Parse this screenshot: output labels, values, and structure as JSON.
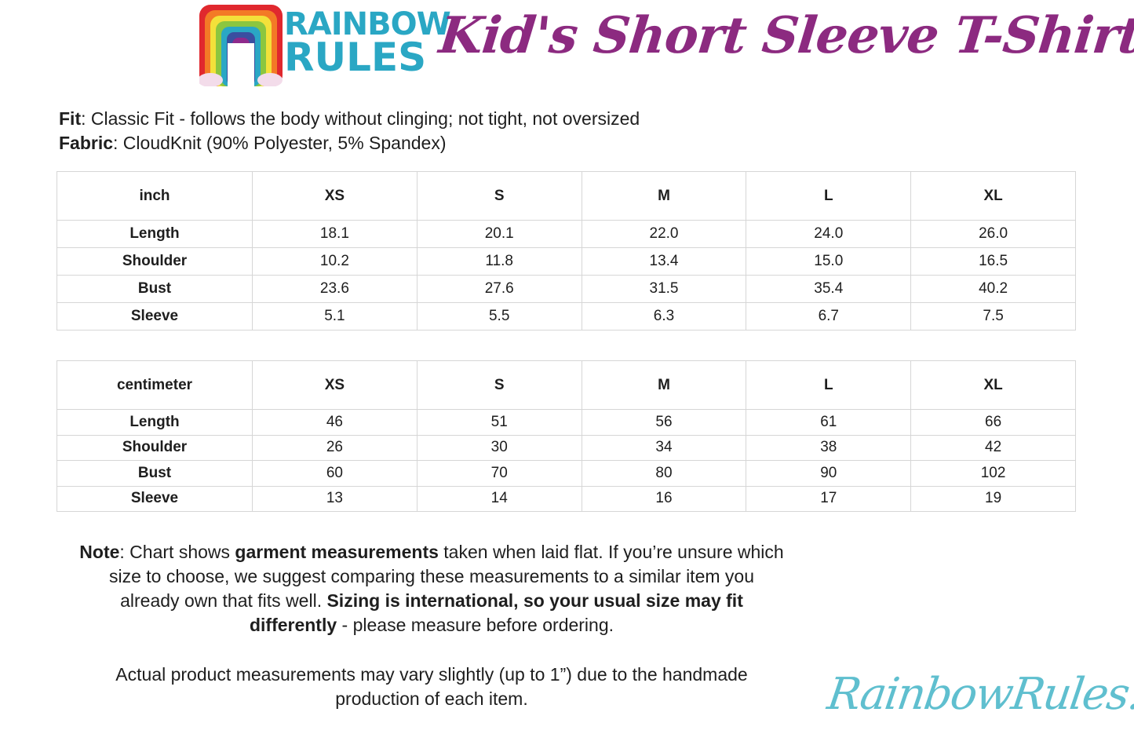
{
  "logo": {
    "line1": "RAINBOW",
    "line2": "RULES",
    "rainbow_colors": [
      "#e0282e",
      "#f37a26",
      "#f3e13a",
      "#8cc63f",
      "#2aa7c4",
      "#3a4fa0",
      "#8e2a8c"
    ]
  },
  "title": "Kid's Short Sleeve T-Shirt",
  "specs": {
    "fit_label": "Fit",
    "fit_value": ": Classic Fit - follows the body without clinging; not tight, not oversized",
    "fabric_label": "Fabric",
    "fabric_value": ": CloudKnit (90% Polyester, 5% Spandex)"
  },
  "inch_table": {
    "headers": [
      "inch",
      "XS",
      "S",
      "M",
      "L",
      "XL"
    ],
    "rows": [
      [
        "Length",
        "18.1",
        "20.1",
        "22.0",
        "24.0",
        "26.0"
      ],
      [
        "Shoulder",
        "10.2",
        "11.8",
        "13.4",
        "15.0",
        "16.5"
      ],
      [
        "Bust",
        "23.6",
        "27.6",
        "31.5",
        "35.4",
        "40.2"
      ],
      [
        "Sleeve",
        "5.1",
        "5.5",
        "6.3",
        "6.7",
        "7.5"
      ]
    ]
  },
  "cm_table": {
    "headers": [
      "centimeter",
      "XS",
      "S",
      "M",
      "L",
      "XL"
    ],
    "rows": [
      [
        "Length",
        "46",
        "51",
        "56",
        "61",
        "66"
      ],
      [
        "Shoulder",
        "26",
        "30",
        "34",
        "38",
        "42"
      ],
      [
        "Bust",
        "60",
        "70",
        "80",
        "90",
        "102"
      ],
      [
        "Sleeve",
        "13",
        "14",
        "16",
        "17",
        "19"
      ]
    ]
  },
  "note": {
    "label": "Note",
    "t1": ": Chart shows ",
    "b1": "garment measurements",
    "t2": " taken when laid flat. If you’re unsure which size to choose, we suggest comparing these measurements to a similar item you already own that fits well. ",
    "b2": "Sizing is international, so your usual size may fit differently",
    "t3": " - please measure before ordering."
  },
  "note2": "Actual product measurements may vary slightly (up to 1”) due to the handmade production of each item.",
  "site": "RainbowRules.com"
}
